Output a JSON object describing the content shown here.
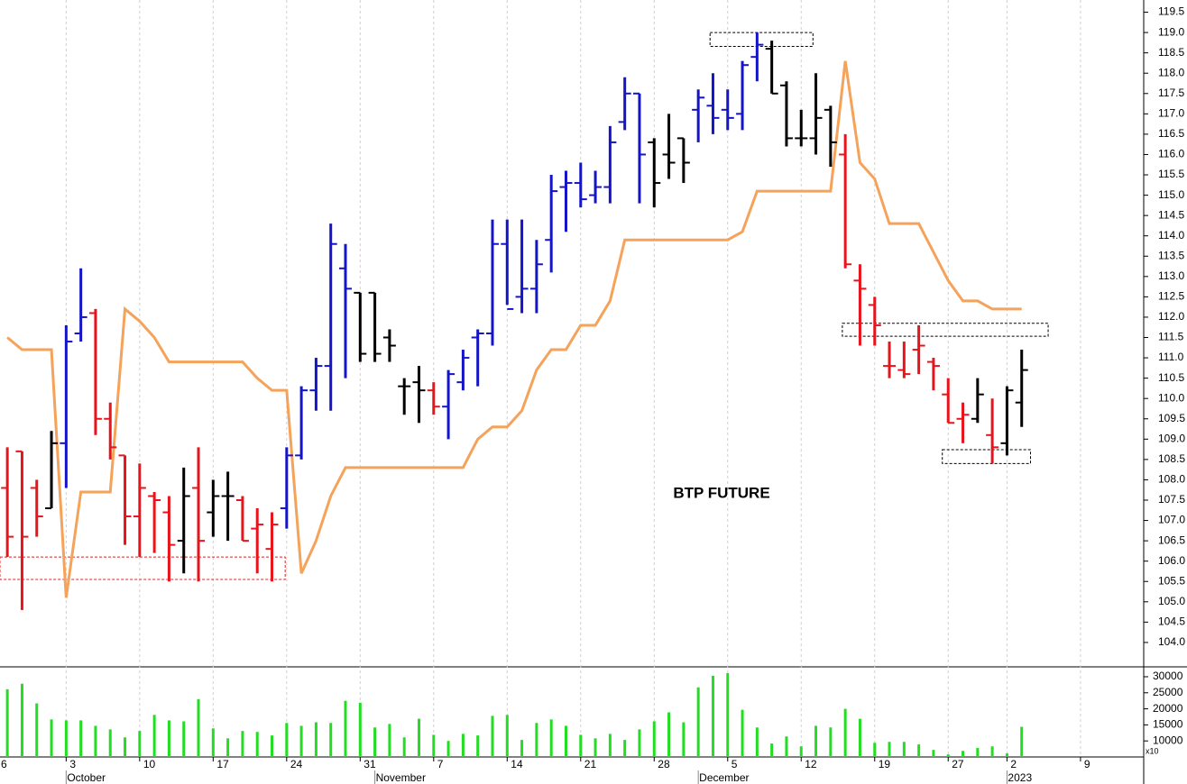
{
  "chart_data": [
    {
      "type": "ohlc",
      "title": "BTP FUTURE",
      "x": [
        0,
        1,
        2,
        3,
        4,
        5,
        6,
        7,
        8,
        9,
        10,
        11,
        12,
        13,
        14,
        15,
        16,
        17,
        18,
        19,
        20,
        21,
        22,
        23,
        24,
        25,
        26,
        27,
        28,
        29,
        30,
        31,
        32,
        33,
        34,
        35,
        36,
        37,
        38,
        39,
        40,
        41,
        42,
        43,
        44,
        45,
        46,
        47,
        48,
        49,
        50,
        51,
        52,
        53,
        54,
        55,
        56,
        57,
        58,
        59,
        60,
        61,
        62,
        63,
        64,
        65,
        66,
        67,
        68,
        69
      ],
      "open": [
        107.8,
        108.7,
        107.8,
        107.3,
        108.9,
        111.6,
        112.1,
        109.5,
        108.6,
        107.1,
        107.6,
        107.2,
        106.5,
        107.8,
        107.2,
        107.6,
        107.5,
        106.8,
        106.3,
        107.3,
        108.6,
        110.2,
        110.8,
        113.2,
        112.6,
        112.6,
        111.5,
        110.3,
        110.4,
        110.2,
        109.8,
        110.4,
        111.5,
        111.6,
        113.8,
        112.5,
        112.7,
        113.9,
        115.2,
        115.3,
        115.0,
        115.2,
        116.8,
        117.5,
        116.3,
        116.0,
        116.4,
        117.1,
        117.2,
        117.1,
        117.0,
        118.4,
        118.6,
        117.7,
        116.4,
        116.4,
        117.1,
        116.0,
        112.9,
        112.3,
        110.8,
        110.7,
        111.2,
        110.9,
        110.1,
        109.5,
        109.5,
        109.1,
        108.9,
        109.9
      ],
      "high": [
        108.8,
        108.7,
        108.0,
        109.2,
        111.8,
        113.2,
        112.2,
        109.9,
        108.6,
        108.4,
        107.7,
        107.6,
        108.3,
        108.8,
        108.0,
        108.2,
        107.6,
        107.3,
        107.2,
        108.8,
        110.3,
        111.0,
        114.3,
        113.8,
        112.6,
        112.6,
        111.7,
        110.5,
        110.8,
        110.4,
        110.7,
        111.2,
        111.7,
        114.4,
        114.4,
        114.4,
        113.9,
        115.5,
        115.6,
        115.8,
        115.6,
        116.7,
        117.9,
        117.5,
        116.4,
        117.0,
        116.4,
        117.6,
        118.0,
        117.6,
        118.3,
        119.0,
        118.8,
        117.8,
        117.1,
        118.0,
        117.2,
        116.5,
        113.3,
        112.5,
        111.4,
        111.4,
        111.8,
        111.0,
        110.5,
        109.9,
        110.5,
        110.0,
        110.3,
        111.2
      ],
      "low": [
        106.1,
        104.8,
        106.6,
        107.3,
        107.8,
        111.4,
        109.1,
        108.5,
        106.4,
        106.1,
        106.2,
        105.5,
        105.7,
        105.5,
        106.6,
        106.5,
        106.5,
        105.7,
        105.5,
        106.8,
        108.5,
        109.7,
        109.7,
        110.5,
        110.9,
        110.9,
        110.9,
        109.6,
        109.4,
        109.6,
        109.0,
        110.2,
        110.3,
        111.3,
        112.3,
        112.1,
        112.1,
        113.1,
        114.1,
        114.7,
        114.8,
        114.8,
        116.6,
        114.8,
        114.7,
        115.4,
        115.3,
        116.3,
        116.5,
        116.6,
        116.6,
        117.8,
        117.5,
        116.2,
        116.2,
        116.0,
        115.7,
        113.2,
        111.3,
        111.3,
        110.5,
        110.5,
        110.6,
        110.2,
        109.4,
        108.9,
        109.4,
        108.4,
        108.6,
        109.3
      ],
      "close": [
        106.6,
        106.6,
        107.1,
        108.9,
        111.4,
        112.0,
        109.5,
        108.8,
        107.1,
        107.8,
        107.5,
        106.4,
        107.6,
        106.5,
        107.6,
        107.6,
        106.5,
        106.9,
        106.9,
        108.6,
        110.2,
        110.8,
        113.8,
        112.7,
        111.1,
        111.1,
        111.3,
        110.3,
        110.2,
        109.8,
        110.6,
        111.0,
        111.6,
        113.8,
        112.2,
        112.7,
        113.3,
        115.1,
        115.3,
        114.9,
        115.2,
        116.3,
        117.5,
        116.0,
        115.3,
        115.8,
        115.8,
        117.4,
        116.9,
        116.9,
        118.2,
        118.7,
        117.5,
        116.4,
        116.4,
        116.9,
        116.3,
        113.3,
        112.7,
        111.8,
        110.8,
        110.6,
        111.3,
        110.8,
        109.4,
        109.6,
        110.1,
        108.8,
        110.2,
        110.7
      ],
      "colors": [
        "#e8141b",
        "#e8141b",
        "#e8141b",
        "#000000",
        "#1414c8",
        "#1414c8",
        "#e8141b",
        "#e8141b",
        "#e8141b",
        "#e8141b",
        "#e8141b",
        "#e8141b",
        "#000000",
        "#e8141b",
        "#000000",
        "#000000",
        "#e8141b",
        "#e8141b",
        "#e8141b",
        "#1414c8",
        "#1414c8",
        "#1414c8",
        "#1414c8",
        "#1414c8",
        "#000000",
        "#000000",
        "#000000",
        "#000000",
        "#000000",
        "#e8141b",
        "#1414c8",
        "#1414c8",
        "#1414c8",
        "#1414c8",
        "#1414c8",
        "#1414c8",
        "#1414c8",
        "#1414c8",
        "#1414c8",
        "#1414c8",
        "#1414c8",
        "#1414c8",
        "#1414c8",
        "#1414c8",
        "#000000",
        "#000000",
        "#000000",
        "#1414c8",
        "#1414c8",
        "#1414c8",
        "#1414c8",
        "#1414c8",
        "#000000",
        "#000000",
        "#000000",
        "#000000",
        "#000000",
        "#e8141b",
        "#e8141b",
        "#e8141b",
        "#e8141b",
        "#e8141b",
        "#e8141b",
        "#e8141b",
        "#e8141b",
        "#e8141b",
        "#000000",
        "#e8141b",
        "#000000",
        "#000000"
      ],
      "line": {
        "color": "#f5a25a",
        "values": [
          111.5,
          111.2,
          111.2,
          111.2,
          105.1,
          107.7,
          107.7,
          107.7,
          112.2,
          111.9,
          111.5,
          110.9,
          110.9,
          110.9,
          110.9,
          110.9,
          110.9,
          110.5,
          110.2,
          110.2,
          105.7,
          106.5,
          107.6,
          108.3,
          108.3,
          108.3,
          108.3,
          108.3,
          108.3,
          108.3,
          108.3,
          108.3,
          109.0,
          109.3,
          109.3,
          109.7,
          110.7,
          111.2,
          111.2,
          111.8,
          111.8,
          112.4,
          113.9,
          113.9,
          113.9,
          113.9,
          113.9,
          113.9,
          113.9,
          113.9,
          114.1,
          115.1,
          115.1,
          115.1,
          115.1,
          115.1,
          115.1,
          118.3,
          115.8,
          115.4,
          114.3,
          114.3,
          114.3,
          113.6,
          112.9,
          112.4,
          112.4,
          112.2,
          112.2,
          112.2
        ]
      },
      "zones": [
        {
          "x": [
            -0.5,
            18.9
          ],
          "y": [
            105.55,
            106.1
          ],
          "color": "#e02020"
        },
        {
          "x": [
            47.8,
            54.8
          ],
          "y": [
            118.66,
            119.0
          ],
          "color": "#000000"
        },
        {
          "x": [
            56.8,
            70.8
          ],
          "y": [
            111.53,
            111.85
          ],
          "color": "#000000"
        },
        {
          "x": [
            63.6,
            69.6
          ],
          "y": [
            108.4,
            108.74
          ],
          "color": "#000000"
        }
      ],
      "xlim": [
        -0.5,
        77.3
      ],
      "ylim": [
        103.4,
        119.8
      ],
      "yticks": [
        {
          "value": 104,
          "label": "104.0"
        },
        104.5,
        {
          "value": 105,
          "label": "105.0"
        },
        105.5,
        {
          "value": 106,
          "label": "106.0"
        },
        106.5,
        {
          "value": 107,
          "label": "107.0"
        },
        107.5,
        {
          "value": 108,
          "label": "108.0"
        },
        108.5,
        {
          "value": 109,
          "label": "109.0"
        },
        109.5,
        {
          "value": 110,
          "label": "110.0"
        },
        110.5,
        {
          "value": 111,
          "label": "111.0"
        },
        111.5,
        {
          "value": 112,
          "label": "112.0"
        },
        112.5,
        {
          "value": 113,
          "label": "113.0"
        },
        113.5,
        {
          "value": 114,
          "label": "114.0"
        },
        114.5,
        {
          "value": 115,
          "label": "115.0"
        },
        115.5,
        {
          "value": 116,
          "label": "116.0"
        },
        116.5,
        {
          "value": 117,
          "label": "117.0"
        },
        117.5,
        {
          "value": 118,
          "label": "118.0"
        },
        118.5,
        {
          "value": 119,
          "label": "119.0"
        },
        119.5
      ],
      "xticks": [
        {
          "value": -1,
          "label": "6"
        },
        {
          "value": 4,
          "label": "3"
        },
        {
          "value": 9,
          "label": "10"
        },
        {
          "value": 14,
          "label": "17"
        },
        {
          "value": 19,
          "label": "24"
        },
        {
          "value": 24,
          "label": "31"
        },
        {
          "value": 29,
          "label": "7"
        },
        {
          "value": 34,
          "label": "14"
        },
        {
          "value": 39,
          "label": "21"
        },
        {
          "value": 44,
          "label": "28"
        },
        {
          "value": 49,
          "label": "5"
        },
        {
          "value": 54,
          "label": "12"
        },
        {
          "value": 59,
          "label": "19"
        },
        {
          "value": 64,
          "label": "27"
        },
        {
          "value": 68,
          "label": "2"
        },
        {
          "value": 73,
          "label": "9"
        }
      ],
      "xmonths": [
        {
          "value": 4,
          "label": "October"
        },
        {
          "value": 25,
          "label": "November"
        },
        {
          "value": 47,
          "label": "December"
        },
        {
          "value": 68,
          "label": "2023"
        }
      ],
      "grid": true
    },
    {
      "type": "bar",
      "color": "#22dd22",
      "values": [
        26100,
        27800,
        21700,
        16700,
        16400,
        16400,
        14700,
        13600,
        11100,
        13100,
        18100,
        16400,
        16100,
        23000,
        13900,
        10800,
        13100,
        12800,
        11700,
        15600,
        14700,
        15800,
        15600,
        22500,
        21900,
        14200,
        15300,
        11100,
        16900,
        11900,
        10000,
        12200,
        11700,
        17800,
        18100,
        10300,
        15600,
        16700,
        14700,
        11900,
        10800,
        12200,
        10300,
        13600,
        16100,
        18900,
        15800,
        26700,
        30300,
        31100,
        19700,
        14200,
        9200,
        11400,
        8300,
        14700,
        14200,
        20000,
        16900,
        9400,
        9700,
        9700,
        8900,
        7200,
        5800,
        6900,
        7800,
        8300,
        6100,
        14400
      ],
      "ylim": [
        5000,
        32800
      ],
      "yticks": [
        10000,
        15000,
        20000,
        25000,
        30000
      ],
      "scale_label": "x10"
    }
  ]
}
